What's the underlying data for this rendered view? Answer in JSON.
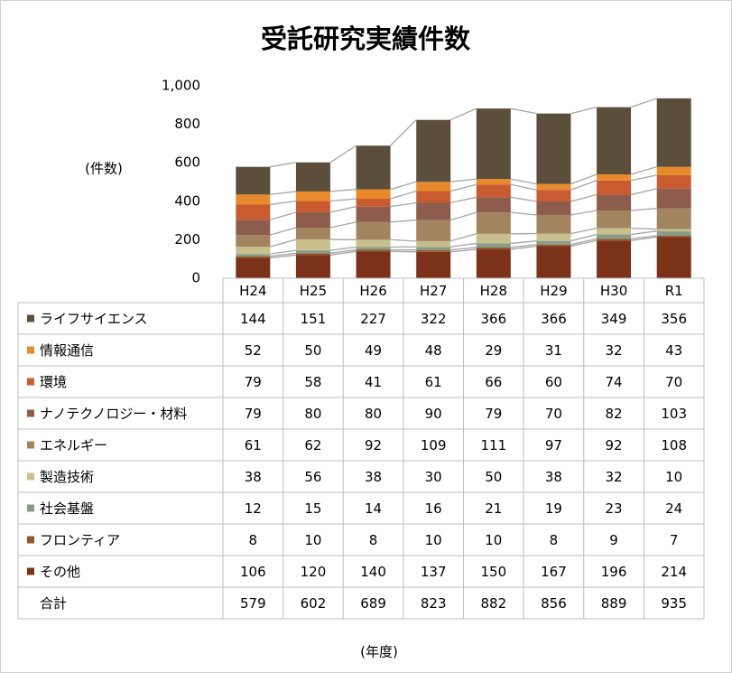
{
  "chart_data": {
    "type": "bar",
    "stacked": true,
    "title": "受託研究実績件数",
    "y_label": "(件数)",
    "x_label": "(年度)",
    "categories": [
      "H24",
      "H25",
      "H26",
      "H27",
      "H28",
      "H29",
      "H30",
      "R1"
    ],
    "series": [
      {
        "name": "その他",
        "color": "#7b3219",
        "values": [
          106,
          120,
          140,
          137,
          150,
          167,
          196,
          214
        ]
      },
      {
        "name": "フロンティア",
        "color": "#8e5a2c",
        "values": [
          8,
          10,
          8,
          10,
          10,
          8,
          9,
          7
        ]
      },
      {
        "name": "社会基盤",
        "color": "#8a9b89",
        "values": [
          12,
          15,
          14,
          16,
          21,
          19,
          23,
          24
        ]
      },
      {
        "name": "製造技術",
        "color": "#c8c08c",
        "values": [
          38,
          56,
          38,
          30,
          50,
          38,
          32,
          10
        ]
      },
      {
        "name": "エネルギー",
        "color": "#a2845f",
        "values": [
          61,
          62,
          92,
          109,
          111,
          97,
          92,
          108
        ]
      },
      {
        "name": "ナノテクノロジー・材料",
        "color": "#8d5c4c",
        "values": [
          79,
          80,
          80,
          90,
          79,
          70,
          82,
          103
        ]
      },
      {
        "name": "環境",
        "color": "#c95b30",
        "values": [
          79,
          58,
          41,
          61,
          66,
          60,
          74,
          70
        ]
      },
      {
        "name": "情報通信",
        "color": "#e88a2b",
        "values": [
          52,
          50,
          49,
          48,
          29,
          31,
          32,
          43
        ]
      },
      {
        "name": "ライフサイエンス",
        "color": "#5b4f3b",
        "values": [
          144,
          151,
          227,
          322,
          366,
          366,
          349,
          356
        ]
      }
    ],
    "total_label": "合計",
    "totals": [
      579,
      602,
      689,
      823,
      882,
      856,
      889,
      935
    ],
    "ylim": [
      0,
      1000
    ],
    "yticks": [
      0,
      200,
      400,
      600,
      800,
      {
        "value": 1000,
        "label": "1,000"
      }
    ],
    "grid": false
  }
}
